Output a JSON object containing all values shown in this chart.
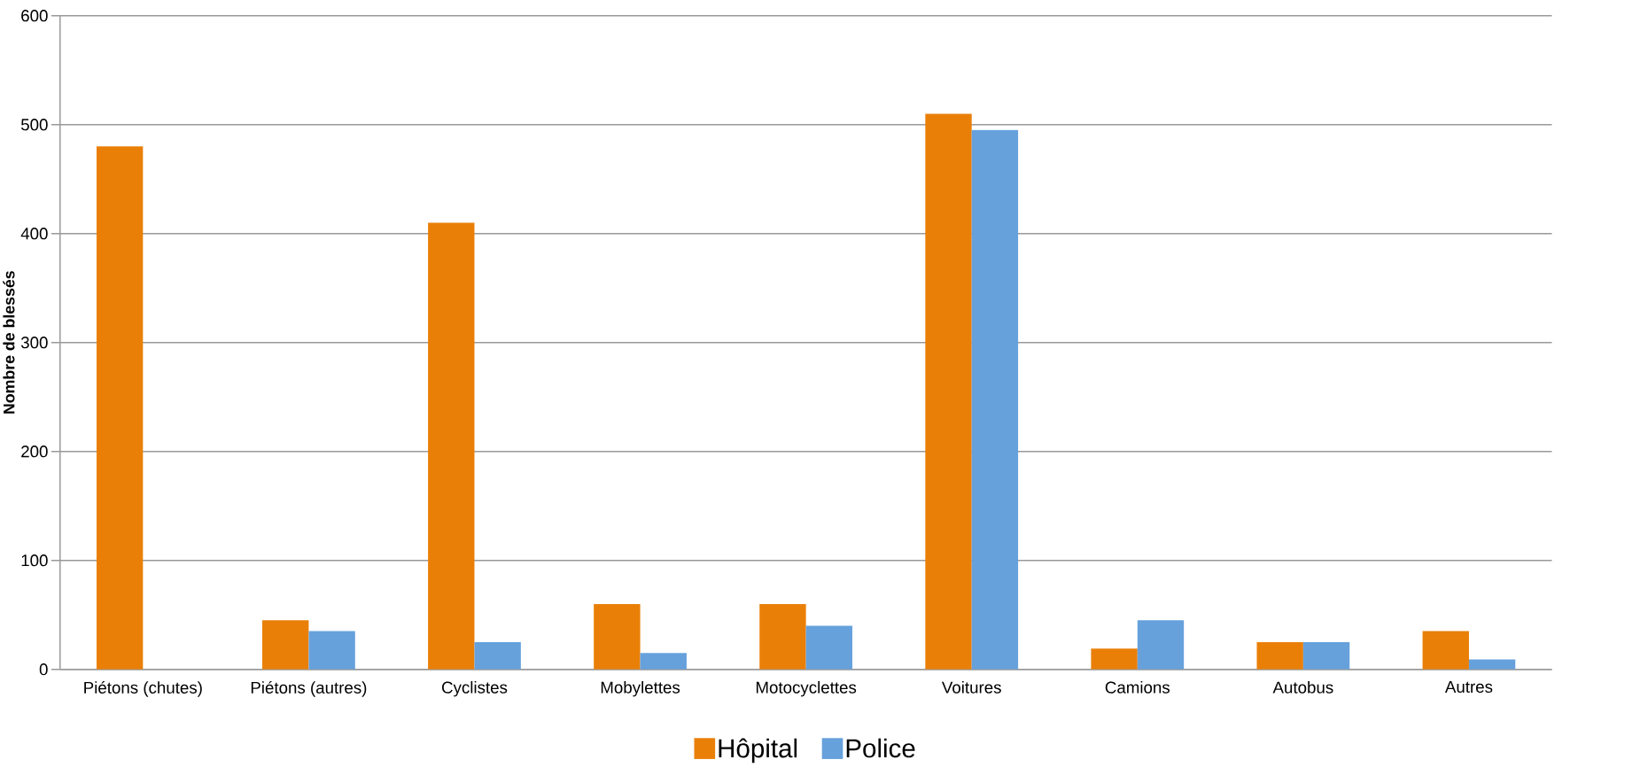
{
  "chart_data": {
    "type": "bar",
    "ylabel": "Nombre de blessés",
    "categories": [
      "Piétons (chutes)",
      "Piétons (autres)",
      "Cyclistes",
      "Mobylettes",
      "Motocyclettes",
      "Voitures",
      "Camions",
      "Autobus",
      "Autres"
    ],
    "series": [
      {
        "name": "Hôpital",
        "color": "#ea7f07",
        "values": [
          480,
          45,
          410,
          60,
          60,
          510,
          19,
          25,
          35
        ]
      },
      {
        "name": "Police",
        "color": "#66a1dc",
        "values": [
          null,
          35,
          25,
          15,
          40,
          495,
          45,
          25,
          9
        ]
      }
    ],
    "ylim": [
      0,
      600
    ],
    "yticks": [
      0,
      100,
      200,
      300,
      400,
      500,
      600
    ],
    "grid": "y",
    "legend": "bottom"
  }
}
